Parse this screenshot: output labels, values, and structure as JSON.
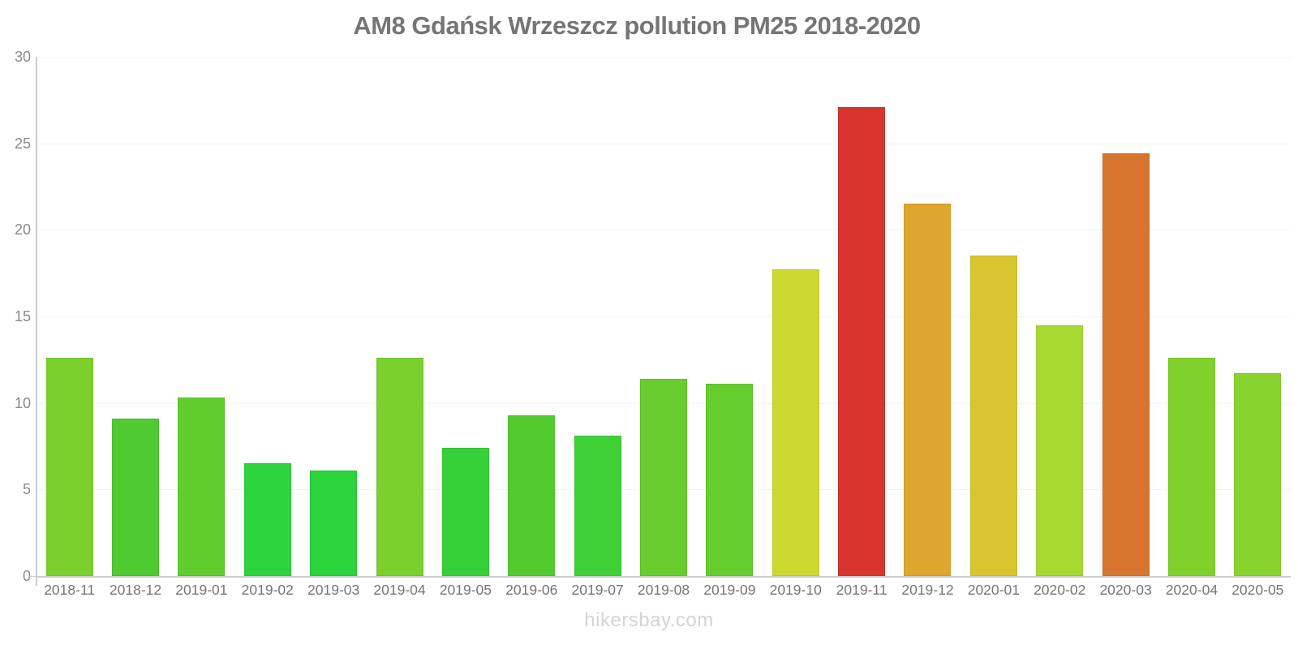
{
  "title": "AM8 Gdańsk Wrzeszcz pollution PM25 2018-2020",
  "footer": "hikersbay.com",
  "colors": {
    "title_text": "#757575",
    "axis_line": "#cccccc",
    "grid_line": "#f4f4f4",
    "y_tick_label": "#8a8a8a",
    "x_tick_label": "#757575",
    "watermark_text": "#d4d4d4"
  },
  "chart_data": {
    "type": "bar",
    "title": "AM8 Gdańsk Wrzeszcz pollution PM25 2018-2020",
    "xlabel": "",
    "ylabel": "",
    "ylim": [
      0,
      30
    ],
    "yticks": [
      0,
      5,
      10,
      15,
      20,
      25,
      30
    ],
    "grid": true,
    "legend": "none",
    "categories": [
      "2018-11",
      "2018-12",
      "2019-01",
      "2019-02",
      "2019-03",
      "2019-04",
      "2019-05",
      "2019-06",
      "2019-07",
      "2019-08",
      "2019-09",
      "2019-10",
      "2019-11",
      "2019-12",
      "2020-01",
      "2020-02",
      "2020-03",
      "2020-04",
      "2020-05"
    ],
    "values": [
      12.6,
      9.1,
      10.3,
      6.5,
      6.1,
      12.6,
      7.4,
      9.3,
      8.1,
      11.4,
      11.1,
      17.7,
      27.1,
      21.5,
      18.5,
      14.5,
      24.4,
      12.6,
      11.7
    ],
    "bar_colors": [
      "#7CD02D",
      "#4FCA31",
      "#60CC2E",
      "#2ED43C",
      "#2BD33D",
      "#7CD02D",
      "#36D139",
      "#52CB31",
      "#3FD036",
      "#68CD2E",
      "#66CD2F",
      "#CBD930",
      "#D8352F",
      "#DDA62F",
      "#D8C52F",
      "#A8D931",
      "#D7752F",
      "#80D12C",
      "#89D32E"
    ]
  }
}
